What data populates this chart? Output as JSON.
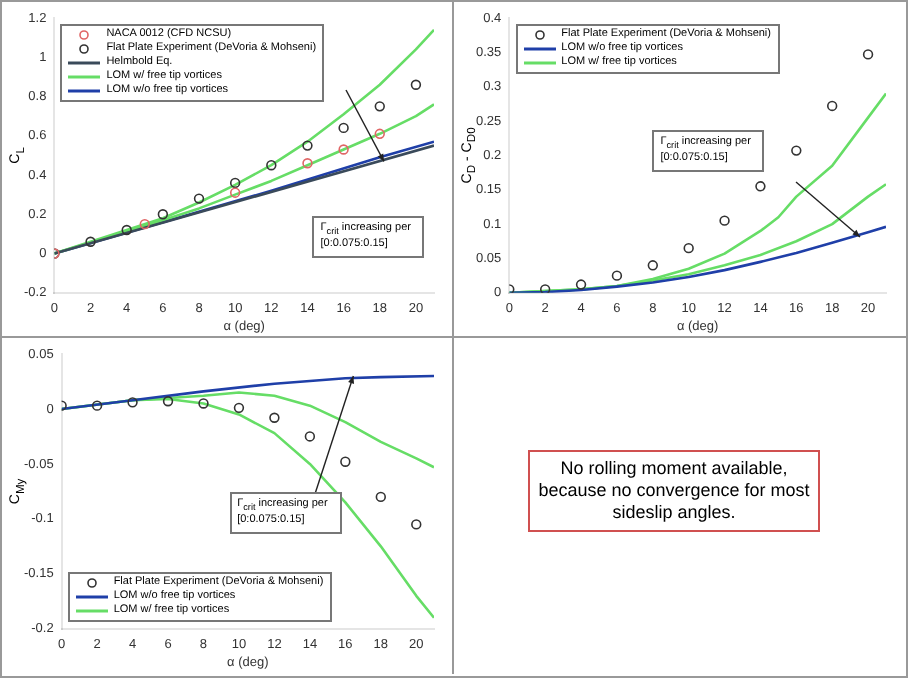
{
  "chart_data": [
    {
      "type": "line",
      "xlabel": "α (deg)",
      "ylabel": "C$_{L}$",
      "xlim": [
        0,
        21
      ],
      "xticks": [
        0,
        2,
        4,
        6,
        8,
        10,
        12,
        14,
        16,
        18,
        20
      ],
      "ylim": [
        -0.2,
        1.2
      ],
      "yticks": [
        -0.2,
        0,
        0.2,
        0.4,
        0.6,
        0.8,
        1,
        1.2
      ],
      "grid": false,
      "legend": "top left",
      "annotations": [
        "Γ$_{crit}$ increasing per [0:0.075:0.15]"
      ],
      "series": [
        {
          "name": "NACA 0012 (CFD NCSU)",
          "type": "scatter",
          "marker": "circle",
          "color": "#e06666",
          "x": [
            0,
            5,
            10,
            14,
            16,
            18
          ],
          "values": [
            0,
            0.15,
            0.31,
            0.46,
            0.53,
            0.61
          ]
        },
        {
          "name": "Flat Plate Experiment (DeVoria & Mohseni)",
          "type": "scatter",
          "marker": "circle",
          "color": "#333333",
          "x": [
            0,
            2,
            4,
            6,
            8,
            10,
            12,
            14,
            16,
            18,
            20
          ],
          "values": [
            0,
            0.06,
            0.12,
            0.2,
            0.28,
            0.36,
            0.45,
            0.55,
            0.64,
            0.75,
            0.86
          ]
        },
        {
          "name": "Helmbold Eq.",
          "type": "line",
          "color": "#3a4a5a",
          "x": [
            0,
            21
          ],
          "values": [
            0,
            0.55
          ]
        },
        {
          "name": "LOM w/ free tip vortices",
          "type": "line",
          "color": "#66dd66",
          "x": [
            0,
            4,
            6,
            8,
            10,
            12,
            14,
            16,
            18,
            20,
            21
          ],
          "values": [
            0,
            0.12,
            0.18,
            0.26,
            0.35,
            0.45,
            0.57,
            0.71,
            0.86,
            1.04,
            1.14
          ]
        },
        {
          "type": "line",
          "color": "#66dd66",
          "x": [
            0,
            6,
            8,
            10,
            12,
            14,
            16,
            18,
            20,
            21
          ],
          "values": [
            0,
            0.17,
            0.23,
            0.3,
            0.37,
            0.45,
            0.53,
            0.61,
            0.7,
            0.76
          ]
        },
        {
          "name": "LOM w/o free tip vortices",
          "type": "line",
          "color": "#1f3fa8",
          "x": [
            0,
            6,
            12,
            18,
            21
          ],
          "values": [
            0,
            0.16,
            0.32,
            0.49,
            0.57
          ]
        }
      ]
    },
    {
      "type": "line",
      "xlabel": "α (deg)",
      "ylabel": "C$_{D}$ - C$_{D0}$",
      "xlim": [
        0,
        21
      ],
      "xticks": [
        0,
        2,
        4,
        6,
        8,
        10,
        12,
        14,
        16,
        18,
        20
      ],
      "ylim": [
        0,
        0.4
      ],
      "yticks": [
        0,
        0.05,
        0.1,
        0.15,
        0.2,
        0.25,
        0.3,
        0.35,
        0.4
      ],
      "grid": false,
      "legend": "top left",
      "annotations": [
        "Γ$_{crit}$ increasing per [0:0.075:0.15]"
      ],
      "series": [
        {
          "name": "Flat Plate Experiment (DeVoria & Mohseni)",
          "type": "scatter",
          "marker": "circle",
          "color": "#333333",
          "x": [
            0,
            2,
            4,
            6,
            8,
            10,
            12,
            14,
            16,
            18,
            20
          ],
          "values": [
            0.005,
            0.005,
            0.012,
            0.025,
            0.04,
            0.065,
            0.105,
            0.155,
            0.207,
            0.272,
            0.347
          ]
        },
        {
          "name": "LOM w/o free tip vortices",
          "type": "line",
          "color": "#1f3fa8",
          "x": [
            0,
            2,
            4,
            6,
            8,
            10,
            12,
            14,
            16,
            18,
            20,
            21
          ],
          "values": [
            0,
            0.001,
            0.004,
            0.009,
            0.015,
            0.023,
            0.033,
            0.045,
            0.058,
            0.073,
            0.088,
            0.096
          ]
        },
        {
          "name": "LOM w/ free tip vortices",
          "type": "line",
          "color": "#66dd66",
          "x": [
            0,
            4,
            6,
            8,
            10,
            12,
            14,
            16,
            18,
            20,
            21
          ],
          "values": [
            0,
            0.005,
            0.01,
            0.018,
            0.027,
            0.04,
            0.055,
            0.075,
            0.1,
            0.14,
            0.158
          ]
        },
        {
          "type": "line",
          "color": "#66dd66",
          "x": [
            0,
            4,
            6,
            8,
            10,
            12,
            14,
            15,
            16,
            18,
            20,
            21
          ],
          "values": [
            0,
            0.005,
            0.01,
            0.02,
            0.035,
            0.057,
            0.09,
            0.11,
            0.14,
            0.185,
            0.255,
            0.29
          ]
        }
      ]
    },
    {
      "type": "line",
      "xlabel": "α (deg)",
      "ylabel": "C$_{My}$",
      "xlim": [
        0,
        21
      ],
      "xticks": [
        0,
        2,
        4,
        6,
        8,
        10,
        12,
        14,
        16,
        18,
        20
      ],
      "ylim": [
        -0.2,
        0.05
      ],
      "yticks": [
        -0.2,
        -0.15,
        -0.1,
        -0.05,
        0,
        0.05
      ],
      "grid": false,
      "legend": "bottom left",
      "annotations": [
        {
          "text": "Γ$_{crit}$ increasing per [0:0.075:0.15]",
          "x": 16.5,
          "y": 0.03
        }
      ],
      "series": [
        {
          "name": "Flat Plate Experiment (DeVoria & Mohseni)",
          "type": "scatter",
          "marker": "circle",
          "color": "#333333",
          "x": [
            0,
            2,
            4,
            6,
            8,
            10,
            12,
            14,
            16,
            18,
            20
          ],
          "values": [
            0.003,
            0.003,
            0.006,
            0.007,
            0.005,
            0.001,
            -0.008,
            -0.025,
            -0.048,
            -0.08,
            -0.105
          ]
        },
        {
          "name": "LOM w/o free tip vortices",
          "type": "line",
          "color": "#1f3fa8",
          "x": [
            0,
            4,
            8,
            12,
            16,
            18,
            21
          ],
          "values": [
            0,
            0.008,
            0.016,
            0.023,
            0.028,
            0.029,
            0.03
          ]
        },
        {
          "name": "LOM w/ free tip vortices",
          "type": "line",
          "color": "#66dd66",
          "x": [
            0,
            4,
            6,
            8,
            10,
            12,
            14,
            16,
            18,
            20,
            21
          ],
          "values": [
            0,
            0.008,
            0.01,
            0.012,
            0.015,
            0.012,
            0.003,
            -0.012,
            -0.03,
            -0.045,
            -0.053
          ]
        },
        {
          "type": "line",
          "color": "#66dd66",
          "x": [
            0,
            4,
            6,
            8,
            10,
            12,
            14,
            16,
            18,
            20,
            21
          ],
          "values": [
            0,
            0.008,
            0.009,
            0.005,
            -0.005,
            -0.022,
            -0.05,
            -0.085,
            -0.125,
            -0.17,
            -0.19
          ]
        }
      ]
    },
    {
      "type": "other",
      "annotations": [
        "No rolling moment available, because no convergence for most sideslip angles."
      ]
    }
  ]
}
